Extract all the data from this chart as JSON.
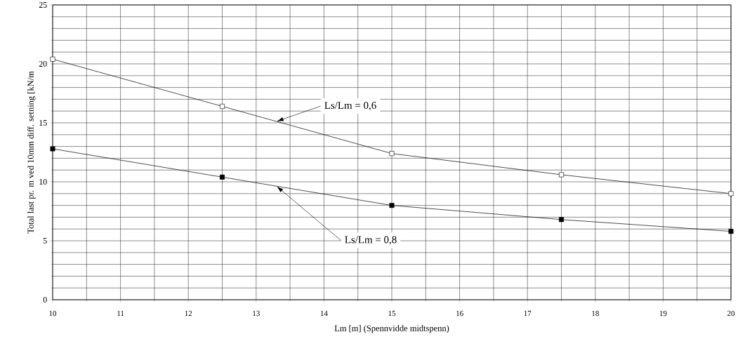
{
  "chart_data": {
    "type": "line",
    "xlabel": "Lm [m] (Spennvidde midtspenn)",
    "ylabel": "Total last pr. m ved 10mm diff. setning [kN/m",
    "x": [
      10,
      12.5,
      15,
      17.5,
      20
    ],
    "series": [
      {
        "name": "Ls/Lm = 0,6",
        "color": "#000000",
        "values": [
          20.4,
          16.4,
          12.4,
          10.6,
          9.0
        ]
      },
      {
        "name": "Ls/Lm = 0,8",
        "color": "#000000",
        "values": [
          12.8,
          10.4,
          8.0,
          6.8,
          5.8
        ]
      }
    ],
    "xlim": [
      10,
      20
    ],
    "xticks": [
      10,
      11,
      12,
      13,
      14,
      15,
      16,
      17,
      18,
      19,
      20
    ],
    "ylim": [
      0,
      25
    ],
    "yticks": [
      0,
      5,
      10,
      15,
      20,
      25
    ],
    "grid": true,
    "marker": "square",
    "line_style": "solid"
  }
}
